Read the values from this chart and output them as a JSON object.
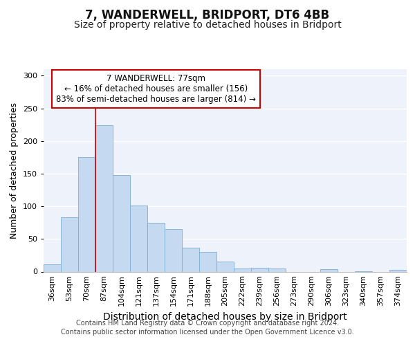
{
  "title": "7, WANDERWELL, BRIDPORT, DT6 4BB",
  "subtitle": "Size of property relative to detached houses in Bridport",
  "xlabel": "Distribution of detached houses by size in Bridport",
  "ylabel": "Number of detached properties",
  "categories": [
    "36sqm",
    "53sqm",
    "70sqm",
    "87sqm",
    "104sqm",
    "121sqm",
    "137sqm",
    "154sqm",
    "171sqm",
    "188sqm",
    "205sqm",
    "222sqm",
    "239sqm",
    "256sqm",
    "273sqm",
    "290sqm",
    "306sqm",
    "323sqm",
    "340sqm",
    "357sqm",
    "374sqm"
  ],
  "values": [
    11,
    83,
    175,
    224,
    148,
    101,
    75,
    65,
    37,
    30,
    15,
    5,
    6,
    5,
    0,
    0,
    4,
    0,
    1,
    0,
    3
  ],
  "bar_color": "#c5d9f0",
  "bar_edge_color": "#7bafd4",
  "vline_color": "#cc0000",
  "vline_pos": 2.5,
  "annotation_box_text": "7 WANDERWELL: 77sqm\n← 16% of detached houses are smaller (156)\n83% of semi-detached houses are larger (814) →",
  "annotation_box_color": "#cc0000",
  "ylim": [
    0,
    310
  ],
  "yticks": [
    0,
    50,
    100,
    150,
    200,
    250,
    300
  ],
  "background_color": "#eef2fa",
  "grid_color": "#ffffff",
  "footer1": "Contains HM Land Registry data © Crown copyright and database right 2024.",
  "footer2": "Contains public sector information licensed under the Open Government Licence v3.0.",
  "title_fontsize": 12,
  "subtitle_fontsize": 10,
  "xlabel_fontsize": 10,
  "ylabel_fontsize": 9,
  "tick_fontsize": 8,
  "footer_fontsize": 7,
  "ann_fontsize": 8.5
}
